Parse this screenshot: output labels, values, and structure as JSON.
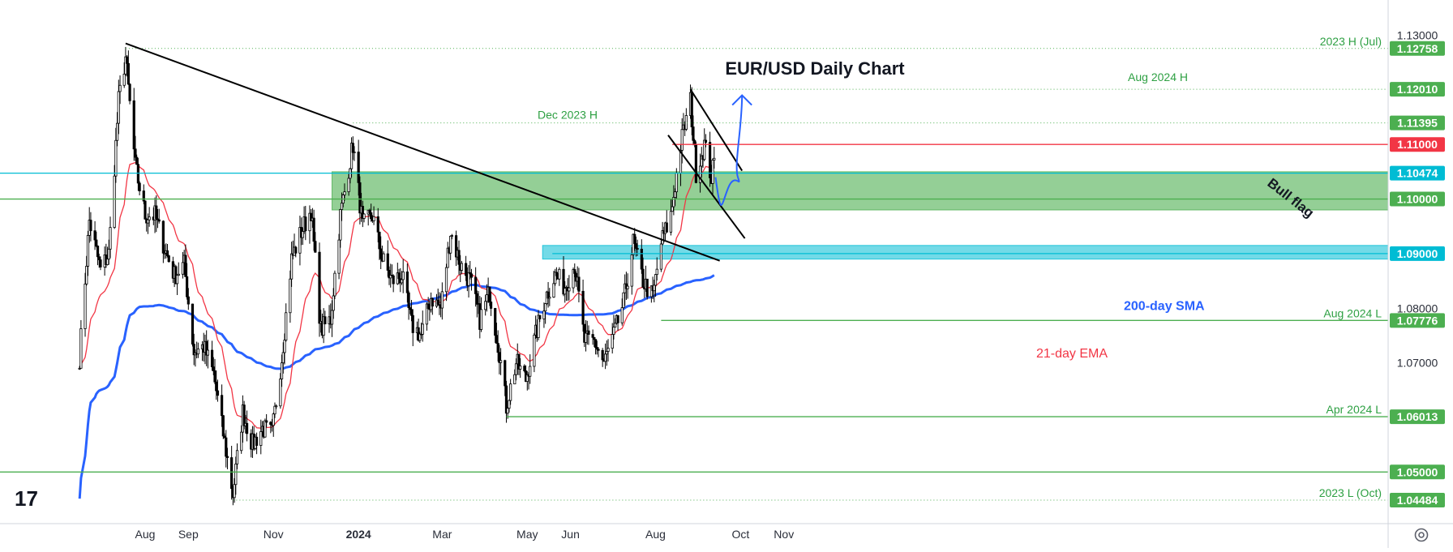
{
  "chart_data": {
    "type": "candlestick",
    "title": "EUR/USD Daily Chart",
    "x_ticks": [
      "Aug",
      "Sep",
      "Nov",
      "2024",
      "Mar",
      "May",
      "Jun",
      "Aug",
      "Oct",
      "Nov"
    ],
    "y_ticks": [
      1.13,
      1.08,
      1.07
    ],
    "y_tick_labels": [
      "1.13000",
      "1.08000",
      "1.07000"
    ],
    "ylim": [
      1.04,
      1.135
    ],
    "levels": [
      {
        "label": "2023 H (Jul)",
        "tag": "1.12758",
        "value": 1.12758,
        "line_color": "#4caf50",
        "tag_color": "#4caf50",
        "dotted": true
      },
      {
        "label": "Aug 2024 H",
        "tag": "1.12010",
        "value": 1.1201,
        "line_color": "#4caf50",
        "tag_color": "#4caf50",
        "dotted": true
      },
      {
        "label": "Dec 2023 H",
        "tag": "1.11395",
        "value": 1.11395,
        "line_color": "#4caf50",
        "tag_color": "#4caf50",
        "dotted": true
      },
      {
        "label": "",
        "tag": "1.11000",
        "value": 1.11,
        "line_color": "#f23645",
        "tag_color": "#f23645",
        "dotted": false
      },
      {
        "label": "",
        "tag": "1.10474",
        "value": 1.10474,
        "line_color": "#00bcd4",
        "tag_color": "#00bcd4",
        "dotted": false
      },
      {
        "label": "",
        "tag": "1.10000",
        "value": 1.1,
        "line_color": "#4caf50",
        "tag_color": "#4caf50",
        "dotted": false
      },
      {
        "label": "",
        "tag": "1.09000",
        "value": 1.09,
        "line_color": "#00bcd4",
        "tag_color": "#00bcd4",
        "dotted": false
      },
      {
        "label": "Aug 2024 L",
        "tag": "1.07776",
        "value": 1.07776,
        "line_color": "#4caf50",
        "tag_color": "#4caf50",
        "dotted": false
      },
      {
        "label": "Apr 2024 L",
        "tag": "1.06013",
        "value": 1.06013,
        "line_color": "#4caf50",
        "tag_color": "#4caf50",
        "dotted": false
      },
      {
        "label": "",
        "tag": "1.05000",
        "value": 1.05,
        "line_color": "#4caf50",
        "tag_color": "#4caf50",
        "dotted": false
      },
      {
        "label": "2023 L (Oct)",
        "tag": "1.04484",
        "value": 1.04484,
        "line_color": "#4caf50",
        "tag_color": "#4caf50",
        "dotted": true
      }
    ],
    "zones": [
      {
        "name": "support-zone",
        "from": 1.098,
        "to": 1.105,
        "color": "#4caf50",
        "start": "2023-12-13"
      },
      {
        "name": "resistance-zone",
        "from": 1.089,
        "to": 1.0915,
        "color": "#00bcd4",
        "start": "2024-05-12"
      }
    ],
    "annotations": {
      "bull_flag": "Bull flag",
      "sma": "200-day SMA",
      "ema": "21-day EMA"
    },
    "colors": {
      "up": "#ffffff",
      "down": "#000000",
      "sma": "#2962ff",
      "ema": "#f23645",
      "forecast": "#2962ff"
    },
    "candles_ohlc_summary": [
      {
        "date": "2023-07-18",
        "high": 1.12758,
        "note": "2023 H (Jul)"
      },
      {
        "date": "2023-10-03",
        "low": 1.04484,
        "note": "2023 L (Oct)"
      },
      {
        "date": "2023-12-28",
        "high": 1.11395,
        "note": "Dec 2023 H"
      },
      {
        "date": "2024-04-16",
        "low": 1.06013,
        "note": "Apr 2024 L"
      },
      {
        "date": "2024-08-05",
        "low": 1.07776,
        "note": "Aug 2024 L"
      },
      {
        "date": "2024-08-26",
        "high": 1.1201,
        "note": "Aug 2024 H"
      }
    ],
    "path": [
      [
        "2023-06-15",
        1.071
      ],
      [
        "2023-06-22",
        1.096
      ],
      [
        "2023-06-30",
        1.087
      ],
      [
        "2023-07-06",
        1.09
      ],
      [
        "2023-07-13",
        1.118
      ],
      [
        "2023-07-18",
        1.126
      ],
      [
        "2023-07-25",
        1.106
      ],
      [
        "2023-08-01",
        1.097
      ],
      [
        "2023-08-08",
        1.097
      ],
      [
        "2023-08-15",
        1.091
      ],
      [
        "2023-08-22",
        1.086
      ],
      [
        "2023-08-29",
        1.088
      ],
      [
        "2023-09-05",
        1.072
      ],
      [
        "2023-09-12",
        1.073
      ],
      [
        "2023-09-19",
        1.068
      ],
      [
        "2023-09-26",
        1.057
      ],
      [
        "2023-10-03",
        1.046
      ],
      [
        "2023-10-10",
        1.061
      ],
      [
        "2023-10-17",
        1.055
      ],
      [
        "2023-10-24",
        1.058
      ],
      [
        "2023-10-31",
        1.057
      ],
      [
        "2023-11-07",
        1.071
      ],
      [
        "2023-11-14",
        1.089
      ],
      [
        "2023-11-21",
        1.094
      ],
      [
        "2023-11-28",
        1.098
      ],
      [
        "2023-12-05",
        1.076
      ],
      [
        "2023-12-12",
        1.078
      ],
      [
        "2023-12-19",
        1.097
      ],
      [
        "2023-12-28",
        1.11
      ],
      [
        "2024-01-04",
        1.095
      ],
      [
        "2024-01-11",
        1.097
      ],
      [
        "2024-01-18",
        1.089
      ],
      [
        "2024-01-25",
        1.085
      ],
      [
        "2024-02-01",
        1.086
      ],
      [
        "2024-02-08",
        1.077
      ],
      [
        "2024-02-15",
        1.075
      ],
      [
        "2024-02-22",
        1.082
      ],
      [
        "2024-02-29",
        1.08
      ],
      [
        "2024-03-07",
        1.094
      ],
      [
        "2024-03-14",
        1.088
      ],
      [
        "2024-03-21",
        1.085
      ],
      [
        "2024-03-28",
        1.078
      ],
      [
        "2024-04-04",
        1.083
      ],
      [
        "2024-04-11",
        1.072
      ],
      [
        "2024-04-16",
        1.062
      ],
      [
        "2024-04-23",
        1.07
      ],
      [
        "2024-04-30",
        1.067
      ],
      [
        "2024-05-07",
        1.075
      ],
      [
        "2024-05-14",
        1.082
      ],
      [
        "2024-05-21",
        1.086
      ],
      [
        "2024-05-28",
        1.084
      ],
      [
        "2024-06-04",
        1.088
      ],
      [
        "2024-06-11",
        1.074
      ],
      [
        "2024-06-18",
        1.074
      ],
      [
        "2024-06-25",
        1.07
      ],
      [
        "2024-07-02",
        1.075
      ],
      [
        "2024-07-09",
        1.081
      ],
      [
        "2024-07-16",
        1.092
      ],
      [
        "2024-07-23",
        1.085
      ],
      [
        "2024-07-30",
        1.082
      ],
      [
        "2024-08-05",
        1.092
      ],
      [
        "2024-08-12",
        1.097
      ],
      [
        "2024-08-19",
        1.11
      ],
      [
        "2024-08-26",
        1.118
      ],
      [
        "2024-08-30",
        1.105
      ],
      [
        "2024-09-05",
        1.11
      ],
      [
        "2024-09-10",
        1.104
      ],
      [
        "2024-09-13",
        1.108
      ]
    ],
    "forecast_path": [
      [
        "2024-09-13",
        1.104
      ],
      [
        "2024-09-17",
        1.1
      ],
      [
        "2024-09-22",
        1.102
      ],
      [
        "2024-09-29",
        1.104
      ],
      [
        "2024-10-02",
        1.119
      ]
    ]
  },
  "chrome": {
    "logo": "17"
  }
}
